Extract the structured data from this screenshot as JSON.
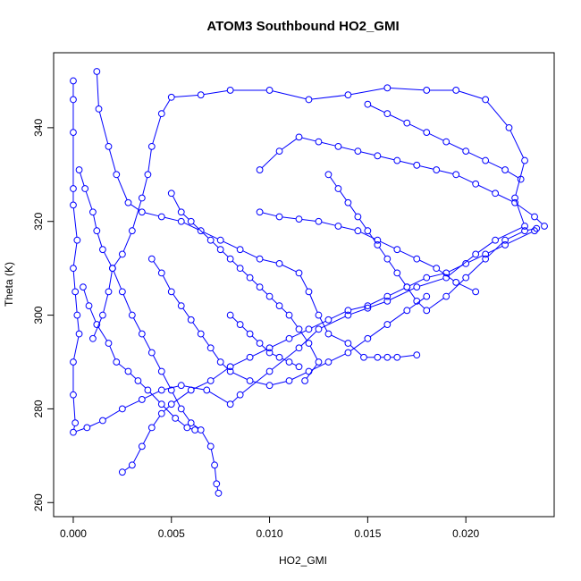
{
  "chart_data": {
    "type": "scatter",
    "title": "ATOM3 Southbound HO2_GMI",
    "xlabel": "HO2_GMI",
    "ylabel": "Theta (K)",
    "xlim": [
      -0.001,
      0.0245
    ],
    "ylim": [
      257,
      356
    ],
    "xticks": [
      "0.000",
      "0.005",
      "0.010",
      "0.015",
      "0.020"
    ],
    "xtick_values": [
      0.0,
      0.005,
      0.01,
      0.015,
      0.02
    ],
    "yticks": [
      "260",
      "280",
      "300",
      "320",
      "340"
    ],
    "ytick_values": [
      260,
      280,
      300,
      320,
      340
    ],
    "grid": false,
    "color": "#0000ff",
    "marker": "open-circle",
    "connected": true,
    "series": [
      {
        "values": [
          [
            0.0,
            350.0
          ],
          [
            0.0,
            346.0
          ],
          [
            0.0,
            339.0
          ],
          [
            0.0,
            327.0
          ],
          [
            0.0,
            323.5
          ],
          [
            0.0002,
            316.0
          ],
          [
            0.0,
            310.0
          ],
          [
            0.0001,
            305.0
          ],
          [
            0.0002,
            300.0
          ],
          [
            0.0003,
            296.0
          ],
          [
            0.0,
            290.0
          ],
          [
            0.0,
            283.0
          ],
          [
            0.0001,
            277.0
          ],
          [
            0.0,
            275.0
          ],
          [
            0.0007,
            276.0
          ],
          [
            0.0015,
            277.5
          ],
          [
            0.0025,
            280.0
          ],
          [
            0.0035,
            282.0
          ],
          [
            0.0045,
            284.0
          ],
          [
            0.0055,
            285.0
          ],
          [
            0.0068,
            284.0
          ],
          [
            0.008,
            281.0
          ],
          [
            0.0085,
            283.0
          ],
          [
            0.01,
            288.0
          ],
          [
            0.0115,
            293.0
          ],
          [
            0.0125,
            297.0
          ],
          [
            0.014,
            300.0
          ],
          [
            0.015,
            301.5
          ],
          [
            0.016,
            303.0
          ],
          [
            0.0175,
            306.0
          ],
          [
            0.019,
            308.0
          ],
          [
            0.0205,
            313.0
          ],
          [
            0.0215,
            316.0
          ],
          [
            0.023,
            319.0
          ],
          [
            0.0225,
            325.0
          ],
          [
            0.023,
            333.0
          ],
          [
            0.0222,
            340.0
          ],
          [
            0.021,
            346.0
          ],
          [
            0.0195,
            348.0
          ],
          [
            0.018,
            348.0
          ],
          [
            0.016,
            348.5
          ],
          [
            0.014,
            347.0
          ],
          [
            0.012,
            346.0
          ],
          [
            0.01,
            348.0
          ],
          [
            0.008,
            348.0
          ],
          [
            0.0065,
            347.0
          ],
          [
            0.005,
            346.5
          ],
          [
            0.0045,
            343.0
          ],
          [
            0.004,
            336.0
          ],
          [
            0.0038,
            330.0
          ],
          [
            0.0035,
            325.0
          ],
          [
            0.003,
            318.0
          ],
          [
            0.0025,
            313.0
          ],
          [
            0.002,
            310.0
          ],
          [
            0.0018,
            305.0
          ],
          [
            0.0015,
            300.0
          ],
          [
            0.001,
            295.0
          ]
        ]
      },
      {
        "values": [
          [
            0.0012,
            352.0
          ],
          [
            0.0013,
            344.0
          ],
          [
            0.0018,
            336.0
          ],
          [
            0.0022,
            330.0
          ],
          [
            0.0028,
            324.0
          ],
          [
            0.0035,
            322.0
          ],
          [
            0.0045,
            321.0
          ],
          [
            0.0055,
            320.0
          ],
          [
            0.0065,
            318.0
          ],
          [
            0.0075,
            316.0
          ],
          [
            0.0085,
            314.0
          ],
          [
            0.0095,
            312.0
          ],
          [
            0.0105,
            311.0
          ],
          [
            0.0115,
            309.0
          ],
          [
            0.012,
            305.0
          ],
          [
            0.0125,
            300.0
          ],
          [
            0.013,
            296.0
          ],
          [
            0.014,
            294.0
          ],
          [
            0.0148,
            291.0
          ],
          [
            0.0155,
            291.0
          ],
          [
            0.016,
            291.0
          ],
          [
            0.0165,
            291.0
          ],
          [
            0.0175,
            291.5
          ]
        ]
      },
      {
        "values": [
          [
            0.0003,
            331.0
          ],
          [
            0.0006,
            327.0
          ],
          [
            0.001,
            322.0
          ],
          [
            0.0012,
            318.0
          ],
          [
            0.0015,
            314.0
          ],
          [
            0.002,
            310.0
          ],
          [
            0.0025,
            305.0
          ],
          [
            0.003,
            300.0
          ],
          [
            0.0035,
            296.0
          ],
          [
            0.004,
            292.0
          ],
          [
            0.0045,
            288.0
          ],
          [
            0.005,
            284.0
          ],
          [
            0.0055,
            280.0
          ],
          [
            0.006,
            277.0
          ],
          [
            0.0065,
            275.5
          ],
          [
            0.007,
            272.0
          ],
          [
            0.0072,
            268.0
          ],
          [
            0.0073,
            264.0
          ],
          [
            0.0074,
            262.0
          ]
        ]
      },
      {
        "values": [
          [
            0.0025,
            266.5
          ],
          [
            0.003,
            268.0
          ],
          [
            0.0035,
            272.0
          ],
          [
            0.004,
            276.0
          ],
          [
            0.0045,
            279.0
          ],
          [
            0.005,
            281.0
          ],
          [
            0.006,
            284.0
          ],
          [
            0.007,
            286.0
          ],
          [
            0.008,
            289.0
          ],
          [
            0.009,
            291.0
          ],
          [
            0.01,
            293.0
          ],
          [
            0.011,
            295.0
          ],
          [
            0.012,
            297.0
          ],
          [
            0.013,
            299.0
          ],
          [
            0.014,
            301.0
          ],
          [
            0.015,
            302.0
          ],
          [
            0.016,
            304.0
          ],
          [
            0.017,
            306.0
          ],
          [
            0.018,
            308.0
          ],
          [
            0.019,
            309.0
          ],
          [
            0.02,
            311.0
          ],
          [
            0.021,
            313.0
          ],
          [
            0.022,
            315.0
          ],
          [
            0.0235,
            318.0
          ]
        ]
      },
      {
        "values": [
          [
            0.0095,
            331.0
          ],
          [
            0.0105,
            335.0
          ],
          [
            0.0115,
            338.0
          ],
          [
            0.0125,
            337.0
          ],
          [
            0.0135,
            336.0
          ],
          [
            0.0145,
            335.0
          ],
          [
            0.0155,
            334.0
          ],
          [
            0.0165,
            333.0
          ],
          [
            0.0175,
            332.0
          ],
          [
            0.0185,
            331.0
          ],
          [
            0.0195,
            330.0
          ],
          [
            0.0205,
            328.0
          ],
          [
            0.0215,
            326.0
          ],
          [
            0.0225,
            324.0
          ],
          [
            0.0235,
            321.0
          ],
          [
            0.024,
            319.0
          ]
        ]
      },
      {
        "values": [
          [
            0.005,
            326.0
          ],
          [
            0.0055,
            322.0
          ],
          [
            0.006,
            320.0
          ],
          [
            0.007,
            316.0
          ],
          [
            0.0075,
            314.0
          ],
          [
            0.008,
            312.0
          ],
          [
            0.0085,
            310.0
          ],
          [
            0.009,
            308.0
          ],
          [
            0.0095,
            306.0
          ],
          [
            0.01,
            304.0
          ],
          [
            0.0105,
            302.0
          ],
          [
            0.011,
            300.0
          ],
          [
            0.0115,
            297.0
          ],
          [
            0.012,
            294.0
          ],
          [
            0.0125,
            290.0
          ],
          [
            0.0118,
            286.0
          ]
        ]
      },
      {
        "values": [
          [
            0.013,
            330.0
          ],
          [
            0.0135,
            327.0
          ],
          [
            0.014,
            324.0
          ],
          [
            0.0145,
            321.0
          ],
          [
            0.015,
            318.0
          ],
          [
            0.0155,
            315.0
          ],
          [
            0.016,
            312.0
          ],
          [
            0.0165,
            309.0
          ],
          [
            0.017,
            306.0
          ],
          [
            0.0175,
            303.0
          ],
          [
            0.018,
            301.0
          ],
          [
            0.019,
            304.0
          ],
          [
            0.02,
            308.0
          ],
          [
            0.021,
            312.0
          ],
          [
            0.022,
            316.0
          ],
          [
            0.023,
            318.0
          ],
          [
            0.0236,
            318.5
          ]
        ]
      },
      {
        "values": [
          [
            0.004,
            312.0
          ],
          [
            0.0045,
            309.0
          ],
          [
            0.005,
            305.0
          ],
          [
            0.0055,
            302.0
          ],
          [
            0.006,
            299.0
          ],
          [
            0.0065,
            296.0
          ],
          [
            0.007,
            293.0
          ],
          [
            0.0075,
            290.0
          ],
          [
            0.008,
            288.0
          ],
          [
            0.009,
            286.0
          ],
          [
            0.01,
            285.0
          ],
          [
            0.011,
            286.0
          ],
          [
            0.012,
            288.0
          ],
          [
            0.013,
            290.0
          ],
          [
            0.014,
            292.0
          ],
          [
            0.015,
            295.0
          ],
          [
            0.016,
            298.0
          ],
          [
            0.017,
            301.0
          ],
          [
            0.018,
            304.0
          ]
        ]
      },
      {
        "values": [
          [
            0.0095,
            322.0
          ],
          [
            0.0105,
            321.0
          ],
          [
            0.0115,
            320.5
          ],
          [
            0.0125,
            320.0
          ],
          [
            0.0135,
            319.0
          ],
          [
            0.0145,
            318.0
          ],
          [
            0.0155,
            316.0
          ],
          [
            0.0165,
            314.0
          ],
          [
            0.0175,
            312.0
          ],
          [
            0.0185,
            310.0
          ],
          [
            0.0195,
            307.0
          ],
          [
            0.0205,
            305.0
          ]
        ]
      },
      {
        "values": [
          [
            0.0005,
            306.0
          ],
          [
            0.0008,
            302.0
          ],
          [
            0.0012,
            298.0
          ],
          [
            0.0018,
            294.0
          ],
          [
            0.0022,
            290.0
          ],
          [
            0.0028,
            288.0
          ],
          [
            0.0033,
            286.0
          ],
          [
            0.0038,
            284.0
          ],
          [
            0.0045,
            281.0
          ],
          [
            0.0052,
            278.0
          ],
          [
            0.0058,
            276.0
          ],
          [
            0.0062,
            275.5
          ]
        ]
      },
      {
        "values": [
          [
            0.015,
            345.0
          ],
          [
            0.016,
            343.0
          ],
          [
            0.017,
            341.0
          ],
          [
            0.018,
            339.0
          ],
          [
            0.019,
            337.0
          ],
          [
            0.02,
            335.0
          ],
          [
            0.021,
            333.0
          ],
          [
            0.022,
            331.0
          ],
          [
            0.0228,
            329.0
          ]
        ]
      },
      {
        "values": [
          [
            0.008,
            300.0
          ],
          [
            0.0085,
            298.0
          ],
          [
            0.009,
            296.0
          ],
          [
            0.0095,
            294.0
          ],
          [
            0.01,
            292.0
          ],
          [
            0.0105,
            291.0
          ],
          [
            0.011,
            290.0
          ],
          [
            0.0115,
            289.0
          ]
        ]
      }
    ]
  }
}
